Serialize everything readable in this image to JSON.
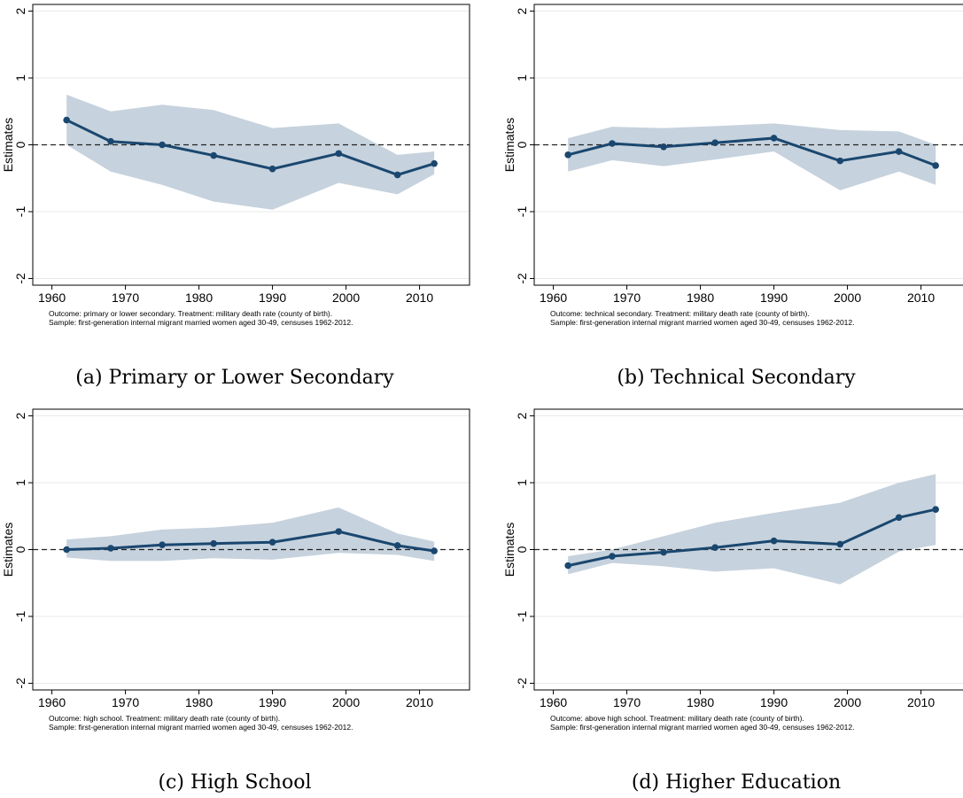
{
  "chart_data": [
    {
      "type": "line",
      "caption": "(a) Primary or Lower Secondary",
      "ylabel": "Estimates",
      "notes": [
        "Outcome: primary or lower secondary. Treatment: military death rate (county of birth).",
        "Sample: first-generation internal migrant married women aged 30-49, censuses 1962-2012."
      ],
      "x": [
        1962,
        1968,
        1975,
        1982,
        1990,
        1999,
        2007,
        2012
      ],
      "values": [
        0.37,
        0.05,
        0.0,
        -0.16,
        -0.36,
        -0.13,
        -0.45,
        -0.28
      ],
      "ci_upper": [
        0.75,
        0.5,
        0.6,
        0.52,
        0.25,
        0.32,
        -0.15,
        -0.1
      ],
      "ci_lower": [
        0.0,
        -0.4,
        -0.6,
        -0.85,
        -0.97,
        -0.57,
        -0.74,
        -0.44
      ],
      "color": "#1a476f",
      "band_color": "#c6d2dd",
      "reference_line": 0,
      "grid": true,
      "xlim": [
        1957.4,
        2016.8
      ],
      "xticks": [
        1960,
        1970,
        1980,
        1990,
        2000,
        2010
      ],
      "ylim": [
        -2.1,
        2.1
      ],
      "yticks": [
        -2,
        -1,
        0,
        1,
        2
      ]
    },
    {
      "type": "line",
      "caption": "(b) Technical Secondary",
      "ylabel": "Estimates",
      "notes": [
        "Outcome: technical secondary. Treatment: military death rate (county of birth).",
        "Sample: first-generation internal migrant married women aged 30-49, censuses 1962-2012."
      ],
      "x": [
        1962,
        1968,
        1975,
        1982,
        1990,
        1999,
        2007,
        2012
      ],
      "values": [
        -0.15,
        0.02,
        -0.03,
        0.03,
        0.1,
        -0.24,
        -0.1,
        -0.31
      ],
      "ci_upper": [
        0.1,
        0.27,
        0.25,
        0.28,
        0.32,
        0.22,
        0.2,
        0.0
      ],
      "ci_lower": [
        -0.4,
        -0.23,
        -0.32,
        -0.22,
        -0.1,
        -0.68,
        -0.4,
        -0.6
      ],
      "color": "#1a476f",
      "band_color": "#c6d2dd",
      "reference_line": 0,
      "grid": true,
      "xlim": [
        1957.4,
        2016.8
      ],
      "xticks": [
        1960,
        1970,
        1980,
        1990,
        2000,
        2010
      ],
      "ylim": [
        -2.1,
        2.1
      ],
      "yticks": [
        -2,
        -1,
        0,
        1,
        2
      ]
    },
    {
      "type": "line",
      "caption": "(c) High School",
      "ylabel": "Estimates",
      "notes": [
        "Outcome: high school. Treatment: military death rate (county of birth).",
        "Sample: first-generation internal migrant married women aged 30-49, censuses 1962-2012."
      ],
      "x": [
        1962,
        1968,
        1975,
        1982,
        1990,
        1999,
        2007,
        2012
      ],
      "values": [
        0.0,
        0.02,
        0.07,
        0.09,
        0.11,
        0.27,
        0.06,
        -0.02
      ],
      "ci_upper": [
        0.15,
        0.2,
        0.3,
        0.33,
        0.4,
        0.63,
        0.24,
        0.12
      ],
      "ci_lower": [
        -0.12,
        -0.17,
        -0.17,
        -0.13,
        -0.15,
        -0.05,
        -0.08,
        -0.17
      ],
      "color": "#1a476f",
      "band_color": "#c6d2dd",
      "reference_line": 0,
      "grid": true,
      "xlim": [
        1957.4,
        2016.8
      ],
      "xticks": [
        1960,
        1970,
        1980,
        1990,
        2000,
        2010
      ],
      "ylim": [
        -2.1,
        2.1
      ],
      "yticks": [
        -2,
        -1,
        0,
        1,
        2
      ]
    },
    {
      "type": "line",
      "caption": "(d) Higher Education",
      "ylabel": "Estimates",
      "notes": [
        "Outcome: above high school. Treatment: military death rate (county of birth).",
        "Sample: first-generation internal migrant married women aged 30-49, censuses 1962-2012."
      ],
      "x": [
        1962,
        1968,
        1975,
        1982,
        1990,
        1999,
        2007,
        2012
      ],
      "values": [
        -0.24,
        -0.1,
        -0.04,
        0.03,
        0.13,
        0.08,
        0.48,
        0.6
      ],
      "ci_upper": [
        -0.1,
        0.0,
        0.2,
        0.4,
        0.55,
        0.7,
        1.0,
        1.13
      ],
      "ci_lower": [
        -0.37,
        -0.2,
        -0.25,
        -0.33,
        -0.28,
        -0.52,
        -0.03,
        0.07
      ],
      "color": "#1a476f",
      "band_color": "#c6d2dd",
      "reference_line": 0,
      "grid": true,
      "xlim": [
        1957.4,
        2016.8
      ],
      "xticks": [
        1960,
        1970,
        1980,
        1990,
        2000,
        2010
      ],
      "ylim": [
        -2.1,
        2.1
      ],
      "yticks": [
        -2,
        -1,
        0,
        1,
        2
      ]
    }
  ]
}
